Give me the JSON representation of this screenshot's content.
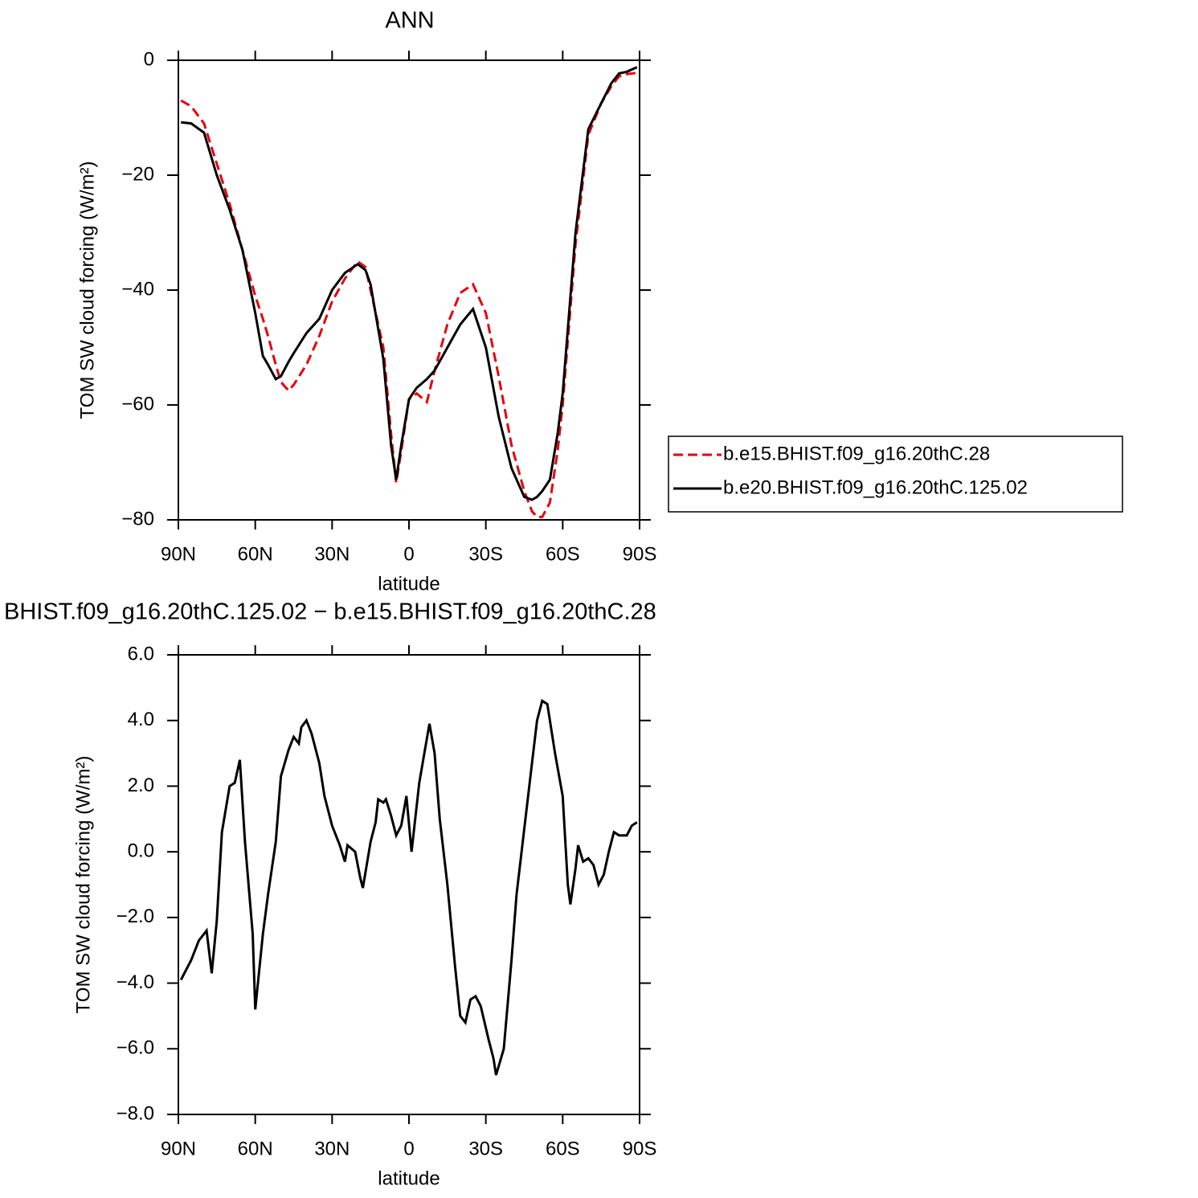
{
  "chart_data": [
    {
      "type": "line",
      "title": "ANN",
      "xlabel": "latitude",
      "ylabel": "TOM SW cloud forcing (W/m²)",
      "xlim": [
        90,
        -90
      ],
      "xticks": [
        {
          "value": 90,
          "label": "90N"
        },
        {
          "value": 60,
          "label": "60N"
        },
        {
          "value": 30,
          "label": "30N"
        },
        0,
        {
          "value": -30,
          "label": "30S"
        },
        {
          "value": -60,
          "label": "60S"
        },
        {
          "value": -90,
          "label": "90S"
        }
      ],
      "ylim": [
        -80,
        0
      ],
      "yticks": [
        0,
        {
          "value": -20,
          "label": "−20"
        },
        {
          "value": -40,
          "label": "−40"
        },
        {
          "value": -60,
          "label": "−60"
        },
        {
          "value": -80,
          "label": "−80"
        }
      ],
      "legend": "right",
      "x": [
        89,
        85,
        80,
        75,
        70,
        65,
        60,
        57,
        55,
        52,
        50,
        47,
        45,
        40,
        35,
        30,
        25,
        20,
        17,
        15,
        10,
        7,
        5,
        3,
        0,
        -3,
        -7,
        -10,
        -15,
        -20,
        -25,
        -30,
        -35,
        -40,
        -45,
        -48,
        -50,
        -52,
        -55,
        -58,
        -60,
        -65,
        -70,
        -75,
        -79,
        -82,
        -85,
        -89
      ],
      "series": [
        {
          "name": "b.e15.BHIST.f09_g16.20thC.28",
          "color": "#e8000b",
          "line_style": "dashed",
          "values": [
            -7,
            -8,
            -11,
            -18,
            -25,
            -33,
            -41,
            -45,
            -48,
            -53,
            -56,
            -57.5,
            -56.5,
            -53,
            -48,
            -42,
            -38,
            -35,
            -36,
            -40,
            -50,
            -65,
            -73.5,
            -68,
            -59,
            -58,
            -59.5,
            -54,
            -46,
            -40.5,
            -39,
            -44,
            -55,
            -67,
            -75,
            -78.5,
            -79.5,
            -79.5,
            -77,
            -68,
            -60,
            -32,
            -13,
            -7.5,
            -4.5,
            -2.8,
            -2.4,
            -2.2
          ]
        },
        {
          "name": "b.e20.BHIST.f09_g16.20thC.125.02",
          "color": "#000000",
          "line_style": "solid",
          "values": [
            -10.8,
            -11,
            -12.6,
            -20,
            -26,
            -33,
            -44,
            -51.5,
            -53,
            -55.5,
            -55,
            -52.5,
            -51,
            -47.5,
            -45,
            -40,
            -37,
            -35.5,
            -36.5,
            -39,
            -52,
            -67,
            -73,
            -67,
            -59,
            -57,
            -55.5,
            -54,
            -50,
            -46,
            -43.3,
            -50,
            -62,
            -71,
            -76,
            -76.5,
            -76,
            -75,
            -73,
            -65,
            -58,
            -30,
            -12,
            -7.5,
            -4,
            -2.3,
            -2,
            -1.2
          ]
        }
      ]
    },
    {
      "type": "line",
      "title": "BHIST.f09_g16.20thC.125.02 − b.e15.BHIST.f09_g16.20thC.28",
      "xlabel": "latitude",
      "ylabel": "TOM SW cloud forcing (W/m²)",
      "xlim": [
        90,
        -90
      ],
      "xticks": [
        {
          "value": 90,
          "label": "90N"
        },
        {
          "value": 60,
          "label": "60N"
        },
        {
          "value": 30,
          "label": "30N"
        },
        0,
        {
          "value": -30,
          "label": "30S"
        },
        {
          "value": -60,
          "label": "60S"
        },
        {
          "value": -90,
          "label": "90S"
        }
      ],
      "ylim": [
        -8,
        6
      ],
      "yticks": [
        {
          "value": 6,
          "label": "6.0"
        },
        {
          "value": 4,
          "label": "4.0"
        },
        {
          "value": 2,
          "label": "2.0"
        },
        {
          "value": 0,
          "label": "0.0"
        },
        {
          "value": -2,
          "label": "−2.0"
        },
        {
          "value": -4,
          "label": "−4.0"
        },
        {
          "value": -6,
          "label": "−6.0"
        },
        {
          "value": -8,
          "label": "−8.0"
        }
      ],
      "x": [
        89,
        85,
        82,
        79,
        77,
        75,
        73,
        70,
        68,
        66,
        64,
        61,
        60,
        57,
        55,
        52,
        50,
        47,
        45,
        43,
        42,
        40,
        38,
        35,
        33,
        30,
        27,
        25,
        24,
        21,
        19,
        18,
        15,
        13,
        12,
        10,
        9,
        7,
        5,
        3,
        1,
        -1,
        -4,
        -6,
        -8,
        -10,
        -12,
        -15,
        -18,
        -20,
        -22,
        -24,
        -26,
        -28,
        -31,
        -33,
        -34,
        -37,
        -40,
        -42,
        -45,
        -48,
        -50,
        -52,
        -54,
        -57,
        -60,
        -62,
        -63,
        -65,
        -66,
        -68,
        -70,
        -72,
        -74,
        -76,
        -78,
        -80,
        -82,
        -85,
        -87,
        -89
      ],
      "series": [
        {
          "color": "#000000",
          "line_style": "solid",
          "values": [
            -3.9,
            -3.3,
            -2.7,
            -2.4,
            -3.7,
            -2.1,
            0.6,
            2.0,
            2.1,
            2.8,
            0.3,
            -2.5,
            -4.8,
            -2.5,
            -1.3,
            0.3,
            2.3,
            3.1,
            3.5,
            3.3,
            3.8,
            4.0,
            3.6,
            2.7,
            1.7,
            0.8,
            0.2,
            -0.3,
            0.2,
            0.0,
            -0.8,
            -1.1,
            0.3,
            0.9,
            1.6,
            1.5,
            1.6,
            1.1,
            0.5,
            0.8,
            1.7,
            0.0,
            2.1,
            3.0,
            3.9,
            3.0,
            1.0,
            -1.0,
            -3.5,
            -5.0,
            -5.2,
            -4.5,
            -4.4,
            -4.7,
            -5.7,
            -6.3,
            -6.8,
            -6.0,
            -3.3,
            -1.3,
            0.7,
            2.7,
            4.0,
            4.6,
            4.5,
            3.0,
            1.7,
            -1.0,
            -1.6,
            -0.5,
            0.2,
            -0.3,
            -0.2,
            -0.4,
            -1.0,
            -0.7,
            0.0,
            0.6,
            0.5,
            0.5,
            0.8,
            0.9
          ]
        }
      ]
    }
  ]
}
